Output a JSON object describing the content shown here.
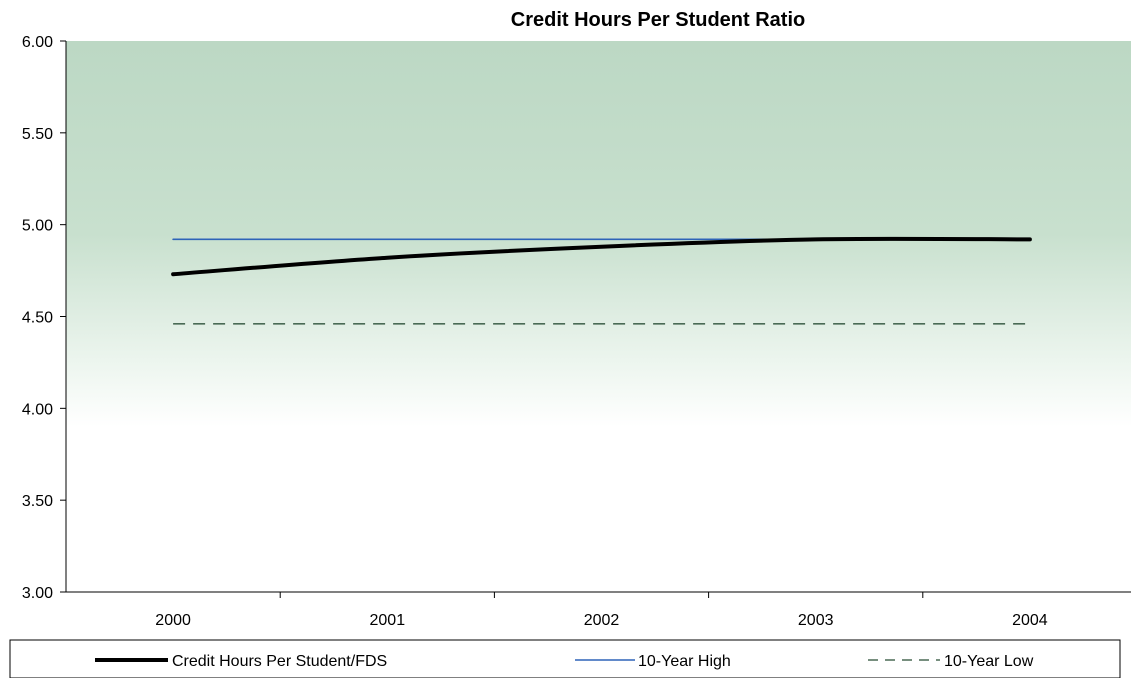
{
  "chart_data": {
    "type": "line",
    "title": "Credit Hours Per Student Ratio",
    "xlabel": "",
    "ylabel": "",
    "categories": [
      "2000",
      "2001",
      "2002",
      "2003",
      "2004"
    ],
    "ylim": [
      3.0,
      6.0
    ],
    "yticks": [
      "3.00",
      "3.50",
      "4.00",
      "4.50",
      "5.00",
      "5.50",
      "6.00"
    ],
    "grid": false,
    "legend_position": "bottom",
    "series": [
      {
        "name": "Credit Hours Per Student/FDS",
        "values": [
          4.73,
          4.82,
          4.88,
          4.92,
          4.92
        ],
        "color": "#000000",
        "style": "solid-thick"
      },
      {
        "name": "10-Year High",
        "values": [
          4.92,
          4.92,
          4.92,
          4.92,
          4.92
        ],
        "color": "#2e64b8",
        "style": "solid"
      },
      {
        "name": "10-Year Low",
        "values": [
          4.46,
          4.46,
          4.46,
          4.46,
          4.46
        ],
        "color": "#4a6a55",
        "style": "dashed"
      }
    ],
    "background_gradient": {
      "top": "#bcd8c4",
      "bottom": "#ffffff"
    }
  }
}
